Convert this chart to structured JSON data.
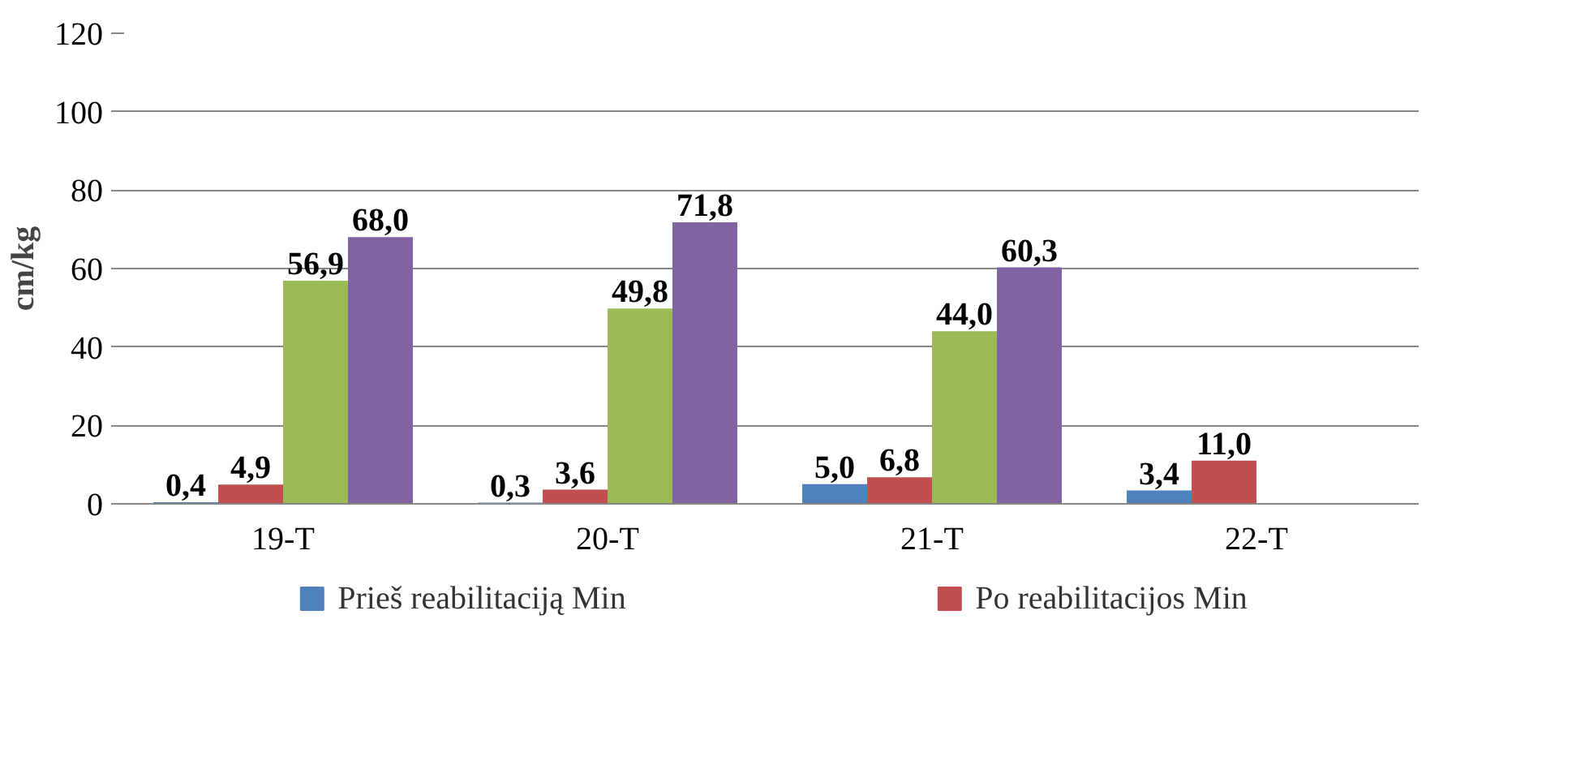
{
  "chart_data": {
    "type": "bar",
    "ylabel": "cm/kg",
    "categories": [
      "19-T",
      "20-T",
      "21-T",
      "22-T"
    ],
    "series": [
      {
        "name": "Prieš reabilitaciją Min",
        "color": "#4f81bd",
        "values": [
          0.4,
          0.3,
          5.0,
          3.4
        ],
        "value_labels": [
          "0,4",
          "0,3",
          "5,0",
          "3,4"
        ]
      },
      {
        "name": "Po reabilitacijos Min",
        "color": "#c0504d",
        "values": [
          4.9,
          3.6,
          6.8,
          11.0
        ],
        "value_labels": [
          "4,9",
          "3,6",
          "6,8",
          "11,0"
        ]
      },
      {
        "color": "#9bbb59",
        "values": [
          56.9,
          49.8,
          44.0,
          null
        ],
        "value_labels": [
          "56,9",
          "49,8",
          "44,0",
          null
        ]
      },
      {
        "color": "#8064a2",
        "values": [
          68.0,
          71.8,
          60.3,
          null
        ],
        "value_labels": [
          "68,0",
          "71,8",
          "60,3",
          null
        ]
      }
    ],
    "ylim": [
      0,
      120
    ],
    "yticks": [
      0,
      20,
      40,
      60,
      80,
      100,
      120
    ],
    "grid": "y",
    "legend": "bottom"
  }
}
